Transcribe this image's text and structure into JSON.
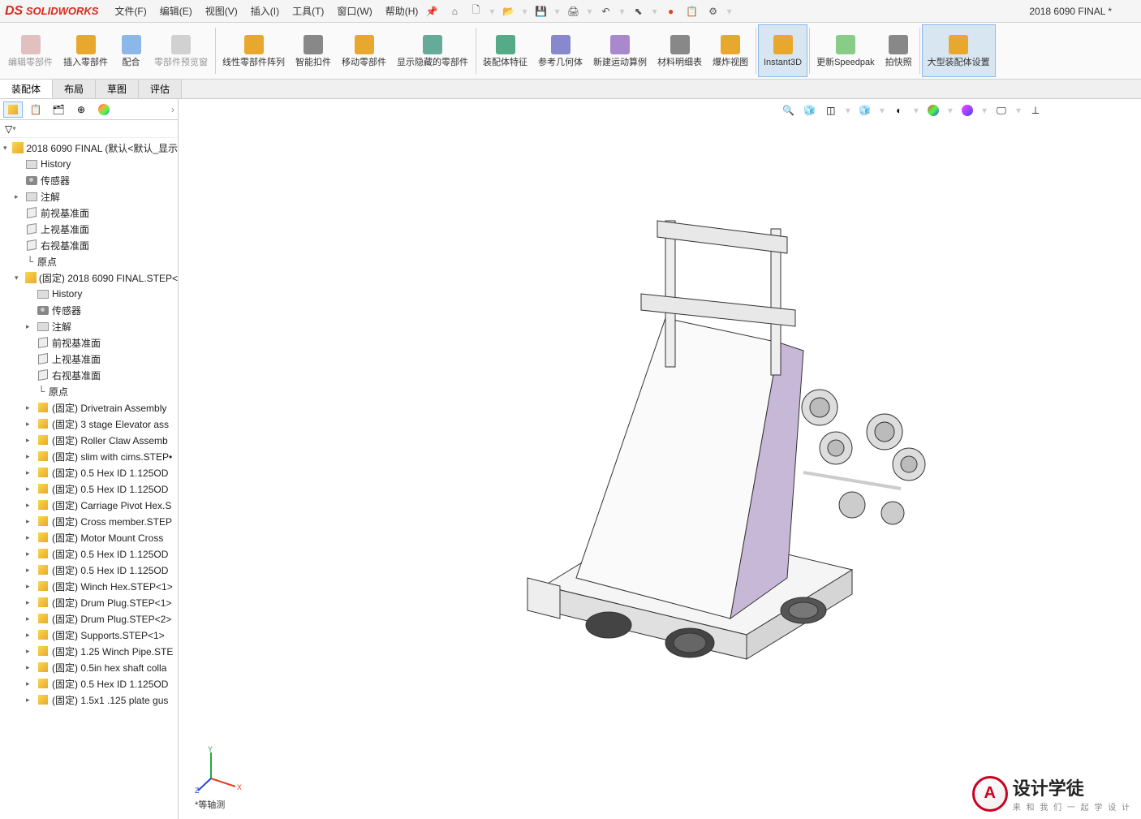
{
  "app": {
    "name": "SOLIDWORKS",
    "doc_title": "2018 6090 FINAL *"
  },
  "menus": [
    {
      "label": "文件(F)"
    },
    {
      "label": "编辑(E)"
    },
    {
      "label": "视图(V)"
    },
    {
      "label": "插入(I)"
    },
    {
      "label": "工具(T)"
    },
    {
      "label": "窗口(W)"
    },
    {
      "label": "帮助(H)"
    }
  ],
  "ribbon": [
    {
      "label": "编辑零部件",
      "icon": "#c88",
      "disabled": true
    },
    {
      "label": "插入零部件",
      "icon": "#e8a82e"
    },
    {
      "label": "配合",
      "icon": "#8bb8e8"
    },
    {
      "label": "零部件预览窗",
      "icon": "#aaa",
      "disabled": true
    },
    {
      "label": "线性零部件阵列",
      "icon": "#e8a82e"
    },
    {
      "label": "智能扣件",
      "icon": "#888"
    },
    {
      "label": "移动零部件",
      "icon": "#e8a82e"
    },
    {
      "label": "显示隐藏的零部件",
      "icon": "#6a9"
    },
    {
      "label": "装配体特征",
      "icon": "#5a8"
    },
    {
      "label": "参考几何体",
      "icon": "#88c"
    },
    {
      "label": "新建运动算例",
      "icon": "#a8c"
    },
    {
      "label": "材料明细表",
      "icon": "#888"
    },
    {
      "label": "爆炸视图",
      "icon": "#e8a82e"
    },
    {
      "label": "Instant3D",
      "icon": "#e8a82e",
      "active": true
    },
    {
      "label": "更新Speedpak",
      "icon": "#8c8"
    },
    {
      "label": "拍快照",
      "icon": "#888"
    },
    {
      "label": "大型装配体设置",
      "icon": "#e8a82e",
      "active": true
    }
  ],
  "tabs": [
    {
      "label": "装配体",
      "active": true
    },
    {
      "label": "布局"
    },
    {
      "label": "草图"
    },
    {
      "label": "评估"
    }
  ],
  "tree_root": "2018 6090 FINAL  (默认<默认_显示",
  "tree_top": [
    {
      "label": "History",
      "icon": "folder"
    },
    {
      "label": "传感器",
      "icon": "camera"
    },
    {
      "label": "注解",
      "icon": "folder",
      "expandable": true
    },
    {
      "label": "前视基准面",
      "icon": "plane"
    },
    {
      "label": "上视基准面",
      "icon": "plane"
    },
    {
      "label": "右视基准面",
      "icon": "plane"
    },
    {
      "label": "原点",
      "icon": "origin"
    }
  ],
  "tree_sub_root": "(固定) 2018 6090 FINAL.STEP<",
  "tree_sub_header": [
    {
      "label": "History",
      "icon": "folder"
    },
    {
      "label": "传感器",
      "icon": "camera"
    },
    {
      "label": "注解",
      "icon": "folder",
      "expandable": true
    },
    {
      "label": "前视基准面",
      "icon": "plane"
    },
    {
      "label": "上视基准面",
      "icon": "plane"
    },
    {
      "label": "右视基准面",
      "icon": "plane"
    },
    {
      "label": "原点",
      "icon": "origin"
    }
  ],
  "tree_parts": [
    "(固定) Drivetrain Assembly",
    "(固定) 3 stage Elevator ass",
    "(固定) Roller Claw Assemb",
    "(固定) slim with cims.STEP•",
    "(固定) 0.5 Hex ID 1.125OD",
    "(固定) 0.5 Hex ID 1.125OD",
    "(固定) Carriage Pivot Hex.S",
    "(固定) Cross member.STEP",
    "(固定) Motor Mount Cross",
    "(固定) 0.5 Hex ID 1.125OD",
    "(固定) 0.5 Hex ID 1.125OD",
    "(固定) Winch Hex.STEP<1>",
    "(固定) Drum Plug.STEP<1>",
    "(固定) Drum Plug.STEP<2>",
    "(固定) Supports.STEP<1>",
    "(固定) 1.25 Winch Pipe.STE",
    "(固定) 0.5in hex shaft colla",
    "(固定) 0.5 Hex ID 1.125OD",
    "(固定) 1.5x1 .125 plate gus"
  ],
  "view_label": "*等轴测",
  "watermark": {
    "text": "设计学徒",
    "sub": "来 和 我 们 一 起 学 设 计",
    "badge": "A"
  },
  "triad": {
    "x": "X",
    "y": "Y",
    "z": "Z",
    "x_color": "#d42",
    "y_color": "#2a4",
    "z_color": "#24d"
  }
}
